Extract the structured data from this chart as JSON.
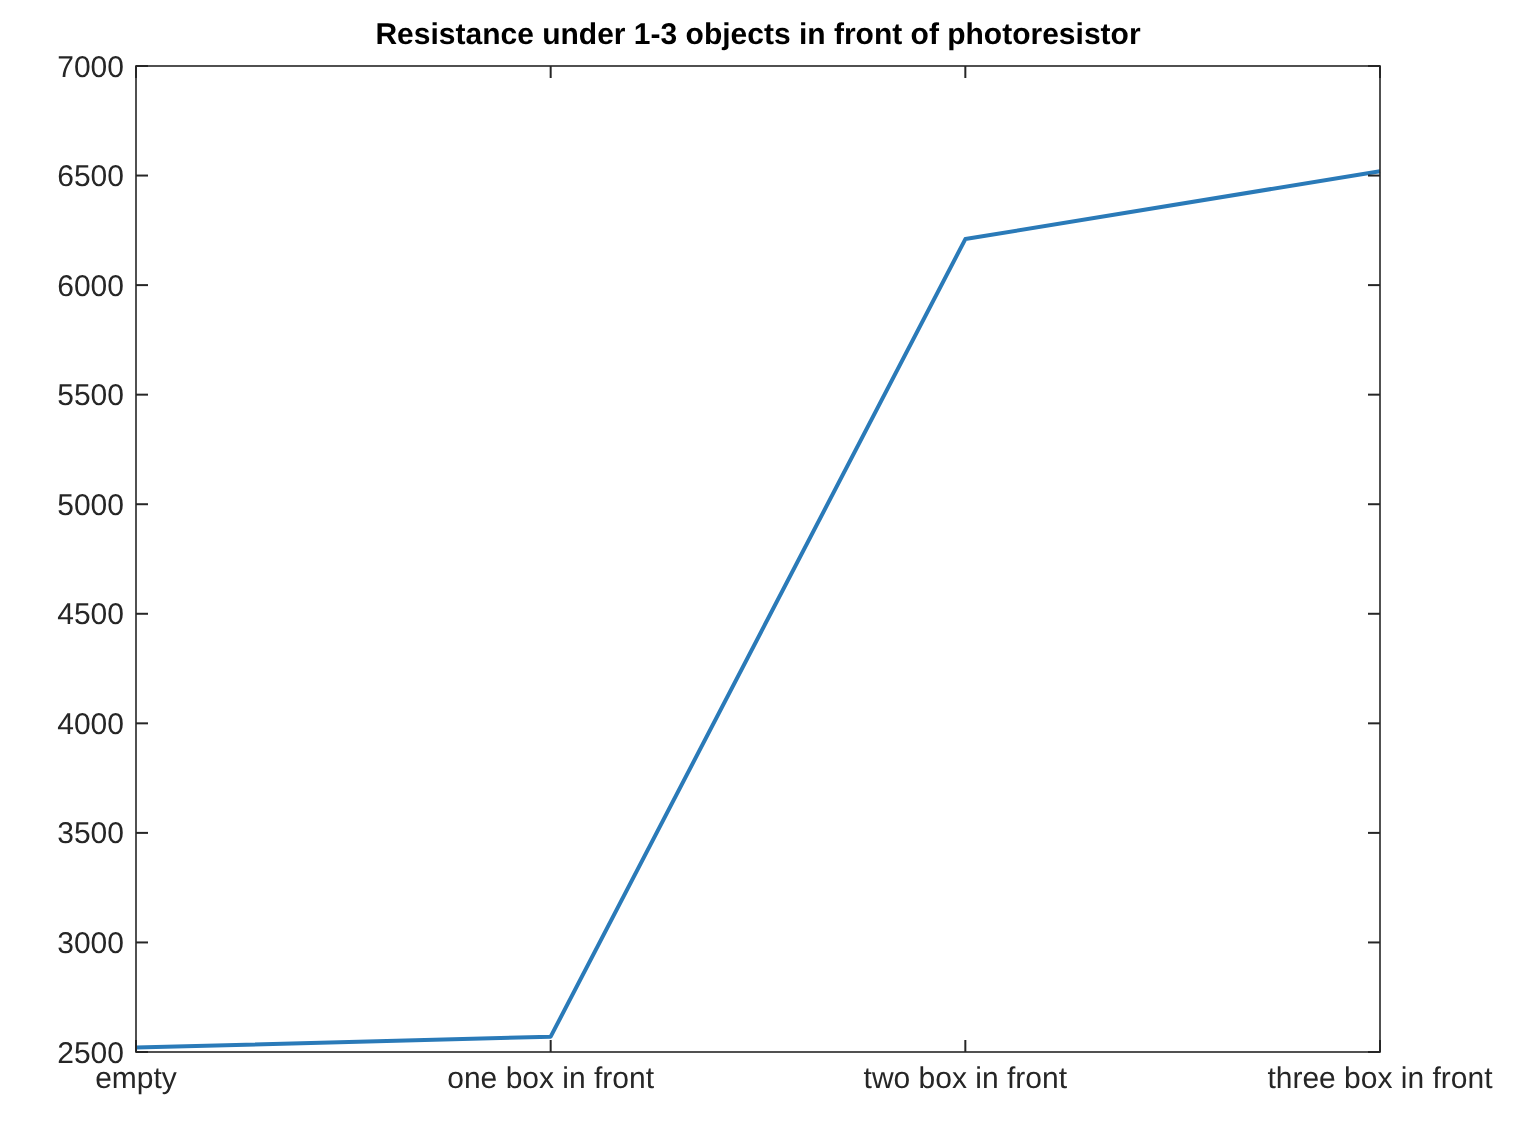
{
  "chart_data": {
    "type": "line",
    "title": "Resistance under 1-3 objects in front of photoresistor",
    "categories": [
      "empty",
      "one box in front",
      "two box in front",
      "three box in front"
    ],
    "series": [
      {
        "color": "#2a7ab8",
        "values": [
          2520,
          2570,
          6210,
          6520
        ]
      }
    ],
    "ylim": [
      2500,
      7000
    ],
    "yticks": [
      2500,
      3000,
      3500,
      4000,
      4500,
      5000,
      5500,
      6000,
      6500,
      7000
    ],
    "grid": false,
    "marker": "none",
    "line_style": "solid"
  }
}
